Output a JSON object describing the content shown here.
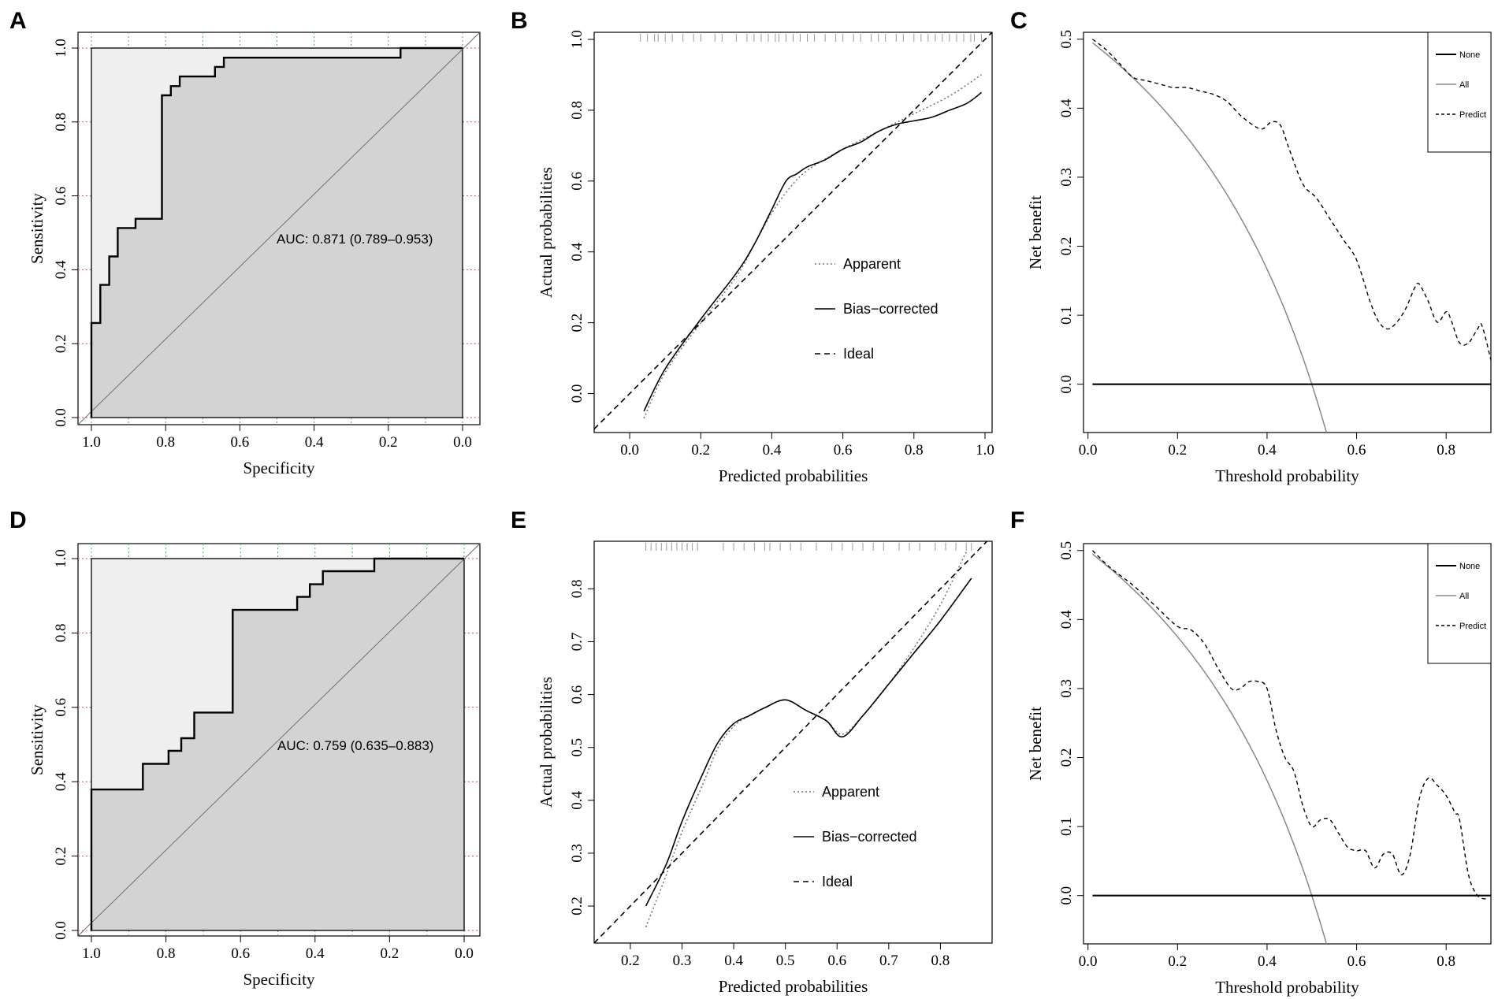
{
  "panel_letters": [
    "A",
    "B",
    "C",
    "D",
    "E",
    "F"
  ],
  "chart_data": [
    {
      "panel": "A",
      "type": "line",
      "subtype": "roc",
      "xlabel": "Specificity",
      "ylabel": "Sensitivity",
      "xlim": [
        1.0,
        0.0
      ],
      "ylim": [
        0.0,
        1.0
      ],
      "xticks": [
        "1.0",
        "0.8",
        "0.6",
        "0.4",
        "0.2",
        "0.0"
      ],
      "yticks": [
        "0.0",
        "0.2",
        "0.4",
        "0.6",
        "0.8",
        "1.0"
      ],
      "annotation": "AUC: 0.871 (0.789–0.953)",
      "colors": {
        "auc_fill": "#d3d3d3",
        "upper_fill": "#efefef",
        "curve": "#000000"
      },
      "curve": {
        "specificity": [
          1.0,
          1.0,
          0.976,
          0.976,
          0.952,
          0.952,
          0.929,
          0.929,
          0.881,
          0.881,
          0.81,
          0.81,
          0.786,
          0.786,
          0.762,
          0.762,
          0.69,
          0.69,
          0.667,
          0.667,
          0.643,
          0.643,
          0.167,
          0.167,
          0.0
        ],
        "sensitivity": [
          0.0,
          0.256,
          0.256,
          0.359,
          0.359,
          0.436,
          0.436,
          0.513,
          0.513,
          0.538,
          0.538,
          0.872,
          0.872,
          0.897,
          0.897,
          0.923,
          0.923,
          0.923,
          0.923,
          0.949,
          0.949,
          0.974,
          0.974,
          1.0,
          1.0
        ]
      }
    },
    {
      "panel": "B",
      "type": "line",
      "subtype": "calibration",
      "xlabel": "Predicted probabilities",
      "ylabel": "Actual probabilities",
      "xlim": [
        -0.1,
        1.02
      ],
      "ylim": [
        -0.11,
        1.02
      ],
      "xticks": [
        "0.0",
        "0.2",
        "0.4",
        "0.6",
        "0.8",
        "1.0"
      ],
      "yticks": [
        "0.0",
        "0.2",
        "0.4",
        "0.6",
        "0.8",
        "1.0"
      ],
      "legend": [
        {
          "label": "Apparent",
          "style": "dotted"
        },
        {
          "label": "Bias−corrected",
          "style": "solid"
        },
        {
          "label": "Ideal",
          "style": "dashed"
        }
      ],
      "colors": {
        "apparent": "#777777",
        "bias": "#000000",
        "ideal": "#000000",
        "rug": "#999999"
      },
      "rug": [
        0.03,
        0.05,
        0.07,
        0.08,
        0.1,
        0.12,
        0.15,
        0.18,
        0.2,
        0.24,
        0.26,
        0.3,
        0.33,
        0.35,
        0.37,
        0.39,
        0.41,
        0.42,
        0.44,
        0.46,
        0.48,
        0.5,
        0.52,
        0.55,
        0.58,
        0.6,
        0.63,
        0.65,
        0.68,
        0.7,
        0.72,
        0.75,
        0.77,
        0.8,
        0.82,
        0.84,
        0.86,
        0.88,
        0.9,
        0.92,
        0.94,
        0.96,
        0.97,
        0.99
      ],
      "series": [
        {
          "name": "Apparent",
          "style": "dotted",
          "x": [
            0.04,
            0.1,
            0.2,
            0.3,
            0.35,
            0.4,
            0.45,
            0.5,
            0.6,
            0.7,
            0.76,
            0.8,
            0.9,
            0.99
          ],
          "y": [
            -0.07,
            0.06,
            0.2,
            0.33,
            0.42,
            0.51,
            0.58,
            0.63,
            0.69,
            0.74,
            0.77,
            0.79,
            0.84,
            0.9
          ]
        },
        {
          "name": "Bias−corrected",
          "style": "solid",
          "x": [
            0.04,
            0.1,
            0.2,
            0.3,
            0.35,
            0.4,
            0.44,
            0.47,
            0.5,
            0.55,
            0.6,
            0.65,
            0.7,
            0.75,
            0.8,
            0.85,
            0.9,
            0.95,
            0.99
          ],
          "y": [
            -0.05,
            0.07,
            0.21,
            0.34,
            0.42,
            0.52,
            0.6,
            0.62,
            0.64,
            0.66,
            0.69,
            0.71,
            0.74,
            0.76,
            0.77,
            0.78,
            0.8,
            0.82,
            0.85
          ]
        },
        {
          "name": "Ideal",
          "style": "dashed",
          "x": [
            -0.1,
            1.02
          ],
          "y": [
            -0.1,
            1.02
          ]
        }
      ]
    },
    {
      "panel": "C",
      "type": "line",
      "subtype": "decision_curve",
      "xlabel": "Threshold probability",
      "ylabel": "Net benefit",
      "xlim": [
        -0.01,
        0.9
      ],
      "ylim": [
        -0.07,
        0.51
      ],
      "xticks": [
        "0.0",
        "0.2",
        "0.4",
        "0.6",
        "0.8"
      ],
      "yticks": [
        "0.0",
        "0.1",
        "0.2",
        "0.3",
        "0.4",
        "0.5"
      ],
      "prevalence": 0.5,
      "legend": [
        {
          "label": "None",
          "style": "solid"
        },
        {
          "label": "All",
          "style": "solid-gray"
        },
        {
          "label": "Predict",
          "style": "dashed"
        }
      ],
      "colors": {
        "none": "#000000",
        "all": "#888888",
        "predict": "#000000"
      },
      "series": [
        {
          "name": "None",
          "style": "solid",
          "x": [
            0.01,
            0.9
          ],
          "y": [
            0,
            0
          ]
        },
        {
          "name": "Predict",
          "style": "dashed",
          "x": [
            0.01,
            0.04,
            0.07,
            0.1,
            0.13,
            0.16,
            0.19,
            0.22,
            0.25,
            0.28,
            0.31,
            0.34,
            0.37,
            0.39,
            0.41,
            0.43,
            0.45,
            0.48,
            0.51,
            0.54,
            0.57,
            0.6,
            0.63,
            0.65,
            0.67,
            0.69,
            0.71,
            0.73,
            0.74,
            0.76,
            0.78,
            0.8,
            0.81,
            0.83,
            0.85,
            0.87,
            0.88,
            0.9
          ],
          "y": [
            0.5,
            0.485,
            0.465,
            0.445,
            0.44,
            0.435,
            0.43,
            0.43,
            0.425,
            0.42,
            0.41,
            0.39,
            0.375,
            0.37,
            0.38,
            0.375,
            0.34,
            0.29,
            0.27,
            0.24,
            0.21,
            0.18,
            0.12,
            0.09,
            0.08,
            0.09,
            0.11,
            0.14,
            0.145,
            0.12,
            0.09,
            0.105,
            0.095,
            0.06,
            0.06,
            0.08,
            0.085,
            0.035
          ]
        }
      ]
    },
    {
      "panel": "D",
      "type": "line",
      "subtype": "roc",
      "xlabel": "Specificity",
      "ylabel": "Sensitivity",
      "xlim": [
        1.0,
        0.0
      ],
      "ylim": [
        0.0,
        1.0
      ],
      "xticks": [
        "1.0",
        "0.8",
        "0.6",
        "0.4",
        "0.2",
        "0.0"
      ],
      "yticks": [
        "0.0",
        "0.2",
        "0.4",
        "0.6",
        "0.8",
        "1.0"
      ],
      "annotation": "AUC: 0.759 (0.635–0.883)",
      "colors": {
        "auc_fill": "#d3d3d3",
        "upper_fill": "#efefef",
        "curve": "#000000"
      },
      "curve": {
        "specificity": [
          1.0,
          1.0,
          0.862,
          0.862,
          0.793,
          0.793,
          0.759,
          0.759,
          0.724,
          0.724,
          0.621,
          0.621,
          0.448,
          0.448,
          0.414,
          0.414,
          0.379,
          0.379,
          0.241,
          0.241,
          0.0
        ],
        "sensitivity": [
          0.0,
          0.379,
          0.379,
          0.448,
          0.448,
          0.483,
          0.483,
          0.517,
          0.517,
          0.586,
          0.586,
          0.862,
          0.862,
          0.897,
          0.897,
          0.931,
          0.931,
          0.966,
          0.966,
          1.0,
          1.0
        ]
      }
    },
    {
      "panel": "E",
      "type": "line",
      "subtype": "calibration",
      "xlabel": "Predicted probabilities",
      "ylabel": "Actual probabilities",
      "xlim": [
        0.13,
        0.9
      ],
      "ylim": [
        0.13,
        0.89
      ],
      "xticks": [
        "0.2",
        "0.3",
        "0.4",
        "0.5",
        "0.6",
        "0.7",
        "0.8"
      ],
      "yticks": [
        "0.2",
        "0.3",
        "0.4",
        "0.5",
        "0.6",
        "0.7",
        "0.8"
      ],
      "legend": [
        {
          "label": "Apparent",
          "style": "dotted"
        },
        {
          "label": "Bias−corrected",
          "style": "solid"
        },
        {
          "label": "Ideal",
          "style": "dashed"
        }
      ],
      "colors": {
        "apparent": "#777777",
        "bias": "#000000",
        "ideal": "#000000",
        "rug": "#999999"
      },
      "rug": [
        0.23,
        0.24,
        0.25,
        0.26,
        0.27,
        0.28,
        0.29,
        0.3,
        0.31,
        0.32,
        0.33,
        0.38,
        0.4,
        0.42,
        0.44,
        0.46,
        0.47,
        0.49,
        0.51,
        0.53,
        0.56,
        0.59,
        0.61,
        0.63,
        0.65,
        0.67,
        0.69,
        0.72,
        0.74,
        0.76,
        0.79,
        0.81,
        0.83,
        0.85,
        0.86
      ],
      "series": [
        {
          "name": "Apparent",
          "style": "dotted",
          "x": [
            0.23,
            0.27,
            0.3,
            0.34,
            0.37,
            0.4,
            0.43,
            0.46,
            0.5,
            0.54,
            0.58,
            0.61,
            0.65,
            0.7,
            0.75,
            0.8,
            0.85
          ],
          "y": [
            0.16,
            0.26,
            0.34,
            0.43,
            0.5,
            0.54,
            0.56,
            0.575,
            0.59,
            0.57,
            0.55,
            0.525,
            0.56,
            0.62,
            0.69,
            0.77,
            0.87
          ]
        },
        {
          "name": "Bias−corrected",
          "style": "solid",
          "x": [
            0.23,
            0.27,
            0.3,
            0.34,
            0.37,
            0.4,
            0.43,
            0.46,
            0.5,
            0.54,
            0.58,
            0.61,
            0.65,
            0.7,
            0.75,
            0.8,
            0.86
          ],
          "y": [
            0.2,
            0.28,
            0.36,
            0.45,
            0.51,
            0.545,
            0.56,
            0.575,
            0.59,
            0.57,
            0.55,
            0.52,
            0.56,
            0.62,
            0.68,
            0.74,
            0.82
          ]
        },
        {
          "name": "Ideal",
          "style": "dashed",
          "x": [
            0.13,
            0.9
          ],
          "y": [
            0.13,
            0.9
          ]
        }
      ]
    },
    {
      "panel": "F",
      "type": "line",
      "subtype": "decision_curve",
      "xlabel": "Threshold probability",
      "ylabel": "Net benefit",
      "xlim": [
        -0.01,
        0.9
      ],
      "ylim": [
        -0.07,
        0.51
      ],
      "xticks": [
        "0.0",
        "0.2",
        "0.4",
        "0.6",
        "0.8"
      ],
      "yticks": [
        "0.0",
        "0.1",
        "0.2",
        "0.3",
        "0.4",
        "0.5"
      ],
      "prevalence": 0.5,
      "legend": [
        {
          "label": "None",
          "style": "solid"
        },
        {
          "label": "All",
          "style": "solid-gray"
        },
        {
          "label": "Predict",
          "style": "dashed"
        }
      ],
      "colors": {
        "none": "#000000",
        "all": "#888888",
        "predict": "#000000"
      },
      "series": [
        {
          "name": "None",
          "style": "solid",
          "x": [
            0.01,
            0.9
          ],
          "y": [
            0,
            0
          ]
        },
        {
          "name": "Predict",
          "style": "dashed",
          "x": [
            0.01,
            0.05,
            0.1,
            0.15,
            0.2,
            0.23,
            0.26,
            0.29,
            0.32,
            0.34,
            0.36,
            0.38,
            0.4,
            0.42,
            0.44,
            0.46,
            0.48,
            0.5,
            0.52,
            0.54,
            0.56,
            0.58,
            0.6,
            0.62,
            0.64,
            0.66,
            0.68,
            0.7,
            0.72,
            0.74,
            0.76,
            0.78,
            0.8,
            0.82,
            0.83,
            0.85,
            0.87,
            0.89
          ],
          "y": [
            0.5,
            0.475,
            0.45,
            0.42,
            0.39,
            0.385,
            0.365,
            0.33,
            0.3,
            0.3,
            0.31,
            0.31,
            0.3,
            0.24,
            0.2,
            0.18,
            0.13,
            0.1,
            0.11,
            0.11,
            0.09,
            0.07,
            0.065,
            0.065,
            0.04,
            0.06,
            0.06,
            0.03,
            0.06,
            0.14,
            0.17,
            0.16,
            0.145,
            0.12,
            0.11,
            0.03,
            0.0,
            -0.005
          ]
        }
      ]
    }
  ]
}
